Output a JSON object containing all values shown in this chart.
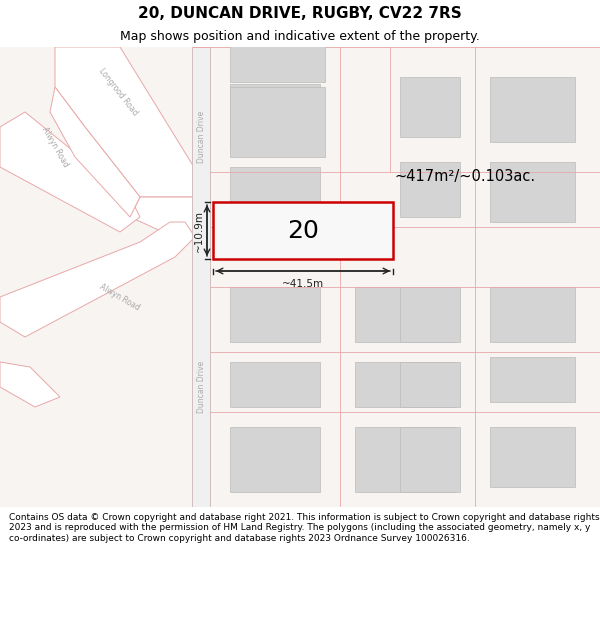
{
  "title": "20, DUNCAN DRIVE, RUGBY, CV22 7RS",
  "subtitle": "Map shows position and indicative extent of the property.",
  "footer": "Contains OS data © Crown copyright and database right 2021. This information is subject to Crown copyright and database rights 2023 and is reproduced with the permission of HM Land Registry. The polygons (including the associated geometry, namely x, y co-ordinates) are subject to Crown copyright and database rights 2023 Ordnance Survey 100026316.",
  "area_label": "~417m²/~0.103ac.",
  "width_label": "~41.5m",
  "height_label": "~10.9m",
  "plot_number": "20",
  "map_bg": "#f7f4f2",
  "plot_fill": "#ffffff",
  "plot_edge": "#cc0000",
  "road_fill": "#ffffff",
  "road_line": "#e8a8a8",
  "road_center_line": "#c8c8c8",
  "building_fill": "#d4d4d4",
  "building_edge": "#bbbbbb",
  "title_fontsize": 11,
  "subtitle_fontsize": 9,
  "footer_fontsize": 6.5,
  "road_label_color": "#aaaaaa",
  "dim_color": "#222222"
}
